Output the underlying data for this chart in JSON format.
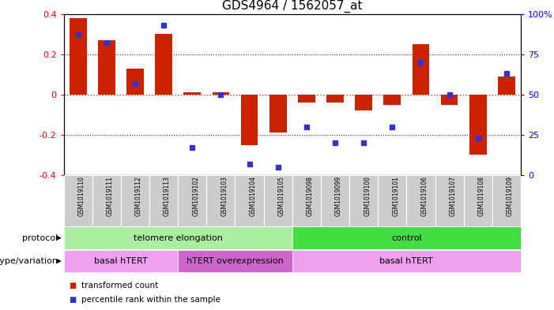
{
  "title": "GDS4964 / 1562057_at",
  "samples": [
    "GSM1019110",
    "GSM1019111",
    "GSM1019112",
    "GSM1019113",
    "GSM1019102",
    "GSM1019103",
    "GSM1019104",
    "GSM1019105",
    "GSM1019098",
    "GSM1019099",
    "GSM1019100",
    "GSM1019101",
    "GSM1019106",
    "GSM1019107",
    "GSM1019108",
    "GSM1019109"
  ],
  "bar_values": [
    0.38,
    0.27,
    0.13,
    0.3,
    0.01,
    0.01,
    -0.25,
    -0.19,
    -0.04,
    -0.04,
    -0.08,
    -0.05,
    0.25,
    -0.05,
    -0.3,
    0.09
  ],
  "dot_values_pct": [
    87,
    82,
    57,
    93,
    17,
    50,
    7,
    5,
    30,
    20,
    20,
    30,
    70,
    50,
    23,
    63
  ],
  "bar_color": "#cc2200",
  "dot_color": "#3333cc",
  "ylim": [
    -0.4,
    0.4
  ],
  "y_left_ticks": [
    -0.4,
    -0.2,
    0.0,
    0.2,
    0.4
  ],
  "y_right_ticks": [
    0,
    25,
    50,
    75,
    100
  ],
  "hline_color": "#dd2200",
  "dotted_line_color": "#333333",
  "protocol_labels": [
    {
      "text": "telomere elongation",
      "start": 0,
      "end": 7,
      "color": "#aaeea0"
    },
    {
      "text": "control",
      "start": 8,
      "end": 15,
      "color": "#44dd44"
    }
  ],
  "genotype_labels": [
    {
      "text": "basal hTERT",
      "start": 0,
      "end": 3,
      "color": "#eea0ee"
    },
    {
      "text": "hTERT overexpression",
      "start": 4,
      "end": 7,
      "color": "#cc66cc"
    },
    {
      "text": "basal hTERT",
      "start": 8,
      "end": 15,
      "color": "#eea0ee"
    }
  ],
  "legend_items": [
    {
      "label": "transformed count",
      "color": "#cc2200"
    },
    {
      "label": "percentile rank within the sample",
      "color": "#3333cc"
    }
  ],
  "bg_color": "#ffffff",
  "tick_bg_color": "#cccccc"
}
